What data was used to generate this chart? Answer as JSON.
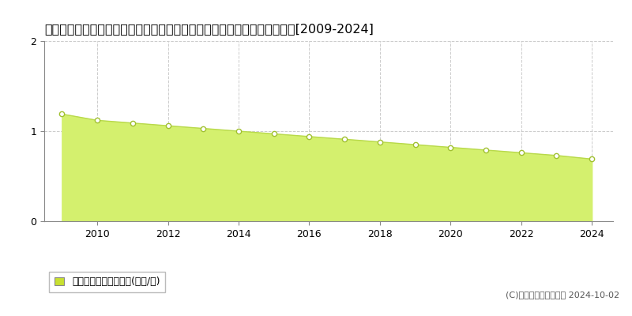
{
  "title": "鹿児島県大島郡伊仙町大字犬田布字平竿２５４番３　基準地価　地価推移[2009-2024]",
  "years": [
    2009,
    2010,
    2011,
    2012,
    2013,
    2014,
    2015,
    2016,
    2017,
    2018,
    2019,
    2020,
    2021,
    2022,
    2023,
    2024
  ],
  "values": [
    1.19,
    1.12,
    1.09,
    1.06,
    1.03,
    1.0,
    0.97,
    0.94,
    0.91,
    0.88,
    0.85,
    0.82,
    0.79,
    0.76,
    0.73,
    0.69
  ],
  "fill_color": "#d4f06e",
  "line_color": "#b8d94a",
  "marker_facecolor": "#ffffff",
  "marker_edgecolor": "#a0c030",
  "bg_color": "#ffffff",
  "grid_color": "#cccccc",
  "ylim": [
    0,
    2
  ],
  "yticks": [
    0,
    1,
    2
  ],
  "legend_label": "基準地価　平均坤単価(万円/坤)",
  "legend_patch_color": "#c8e030",
  "copyright_text": "(C)土地価格ドットコム 2024-10-02",
  "title_fontsize": 11.5,
  "axis_fontsize": 9,
  "legend_fontsize": 9,
  "copyright_fontsize": 8
}
